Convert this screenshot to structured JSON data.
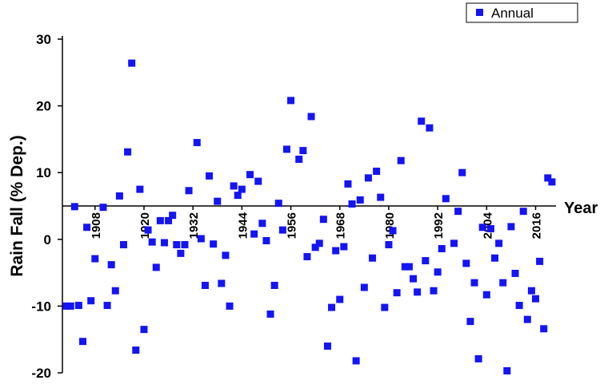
{
  "chart_data": {
    "type": "scatter",
    "x_label": "Year",
    "y_label": "Rain Fall (% Dep.)",
    "series": [
      {
        "name": "Annual",
        "color": "#1414f5",
        "x": [
          1901,
          1902,
          1903,
          1904,
          1905,
          1906,
          1907,
          1908,
          1910,
          1911,
          1912,
          1913,
          1914,
          1915,
          1916,
          1917,
          1918,
          1919,
          1920,
          1921,
          1922,
          1923,
          1924,
          1925,
          1926,
          1927,
          1928,
          1929,
          1930,
          1931,
          1933,
          1934,
          1935,
          1936,
          1937,
          1938,
          1939,
          1940,
          1941,
          1942,
          1943,
          1944,
          1946,
          1947,
          1948,
          1949,
          1950,
          1951,
          1952,
          1953,
          1954,
          1955,
          1956,
          1958,
          1959,
          1960,
          1961,
          1962,
          1963,
          1964,
          1965,
          1966,
          1967,
          1968,
          1969,
          1970,
          1971,
          1972,
          1973,
          1974,
          1975,
          1976,
          1977,
          1978,
          1979,
          1980,
          1981,
          1982,
          1983,
          1984,
          1985,
          1986,
          1987,
          1988,
          1989,
          1990,
          1991,
          1992,
          1993,
          1994,
          1996,
          1997,
          1998,
          1999,
          2000,
          2001,
          2002,
          2003,
          2004,
          2005,
          2006,
          2007,
          2008,
          2009,
          2010,
          2011,
          2012,
          2013,
          2014,
          2015,
          2016,
          2017,
          2018,
          2019,
          2020
        ],
        "values": [
          -10.0,
          -10.0,
          4.9,
          -9.9,
          -15.3,
          1.8,
          -9.2,
          -2.9,
          4.8,
          -9.9,
          -3.8,
          -7.7,
          6.5,
          -0.8,
          13.1,
          26.4,
          -16.6,
          7.5,
          -13.5,
          1.4,
          -0.4,
          -4.2,
          2.8,
          -0.5,
          2.8,
          3.6,
          -0.8,
          -2.1,
          -0.8,
          7.3,
          14.5,
          0.1,
          -6.9,
          9.5,
          -0.7,
          5.7,
          -6.6,
          -2.4,
          -10.0,
          8.0,
          6.6,
          7.5,
          9.7,
          0.8,
          8.7,
          2.4,
          -0.2,
          -11.2,
          -6.9,
          5.4,
          1.4,
          13.5,
          20.8,
          12.0,
          13.3,
          -2.6,
          18.4,
          -1.2,
          -0.6,
          3.0,
          -16.0,
          -10.2,
          -1.7,
          -9.0,
          -1.1,
          8.3,
          5.3,
          -18.2,
          5.9,
          -7.2,
          9.2,
          -2.8,
          10.2,
          6.3,
          -10.2,
          -0.8,
          1.3,
          -8.0,
          11.8,
          -4.1,
          -4.1,
          -5.9,
          -7.9,
          17.7,
          -3.2,
          16.7,
          -7.7,
          -4.9,
          -1.4,
          6.1,
          -0.6,
          4.2,
          10.0,
          -3.6,
          -12.3,
          -6.5,
          -17.9,
          1.8,
          -8.3,
          1.6,
          -2.8,
          -0.6,
          -6.5,
          -19.7,
          1.9,
          -5.1,
          -9.9,
          4.2,
          -12.0,
          -7.7,
          -8.9,
          -3.3,
          -13.4,
          9.2,
          8.6
        ]
      }
    ],
    "xlim": [
      1900,
      2021
    ],
    "xticks": [
      1908,
      1920,
      1932,
      1944,
      1956,
      1968,
      1980,
      1992,
      2004,
      2016
    ],
    "ylim": [
      -20,
      30
    ],
    "yticks": [
      -20,
      -10,
      0,
      10,
      20,
      30
    ],
    "x_axis_crosses_at": 5,
    "grid": false,
    "legend": "top-right"
  }
}
